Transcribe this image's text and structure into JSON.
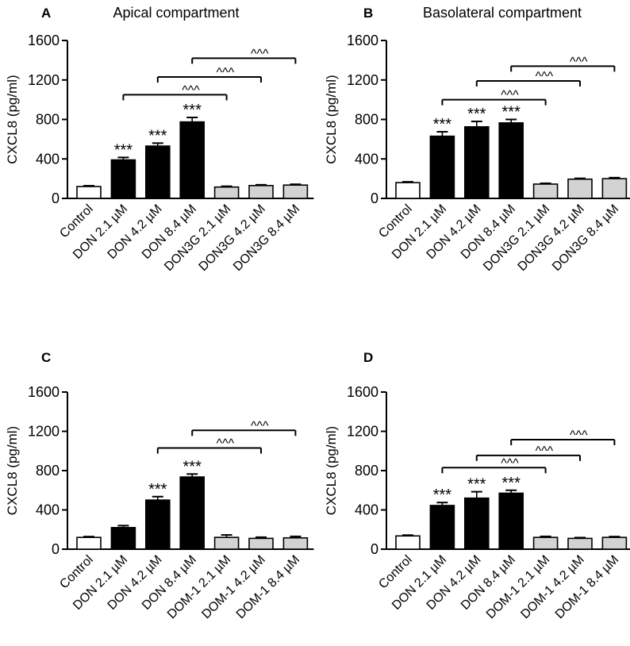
{
  "chart_data": [
    {
      "panel_label": "A",
      "title": "Apical compartment",
      "type": "bar",
      "ylabel": "CXCL8 (pg/ml)",
      "ylim": [
        0,
        1600
      ],
      "yticks": [
        "0",
        "400",
        "800",
        "1200",
        "1600"
      ],
      "categories": [
        "Control",
        "DON 2.1 µM",
        "DON 4.2 µM",
        "DON 8.4 µM",
        "DON3G 2.1 µM",
        "DON3G 4.2 µM",
        "DON3G 8.4 µM"
      ],
      "values": [
        120,
        390,
        530,
        775,
        115,
        130,
        135
      ],
      "errors": [
        8,
        25,
        30,
        45,
        8,
        8,
        8
      ],
      "bar_fills": [
        "white",
        "black",
        "black",
        "black",
        "gray",
        "gray",
        "gray"
      ],
      "significance": [
        "",
        "***",
        "***",
        "***",
        "",
        "",
        ""
      ],
      "comparisons": [
        {
          "from": 1,
          "to": 4,
          "level": 1050,
          "label": "^^^"
        },
        {
          "from": 2,
          "to": 5,
          "level": 1230,
          "label": "^^^"
        },
        {
          "from": 3,
          "to": 6,
          "level": 1420,
          "label": "^^^"
        }
      ]
    },
    {
      "panel_label": "B",
      "title": "Basolateral compartment",
      "type": "bar",
      "ylabel": "CXCL8 (pg/ml)",
      "ylim": [
        0,
        1600
      ],
      "yticks": [
        "0",
        "400",
        "800",
        "1200",
        "1600"
      ],
      "categories": [
        "Control",
        "DON 2.1 µM",
        "DON 4.2 µM",
        "DON 8.4 µM",
        "DON3G 2.1 µM",
        "DON3G 4.2 µM",
        "DON3G 8.4 µM"
      ],
      "values": [
        160,
        630,
        725,
        765,
        145,
        195,
        200
      ],
      "errors": [
        8,
        45,
        55,
        35,
        8,
        8,
        10
      ],
      "bar_fills": [
        "white",
        "black",
        "black",
        "black",
        "gray",
        "gray",
        "gray"
      ],
      "significance": [
        "",
        "***",
        "***",
        "***",
        "",
        "",
        ""
      ],
      "comparisons": [
        {
          "from": 1,
          "to": 4,
          "level": 1000,
          "label": "^^^"
        },
        {
          "from": 2,
          "to": 5,
          "level": 1190,
          "label": "^^^"
        },
        {
          "from": 3,
          "to": 6,
          "level": 1340,
          "label": "^^^"
        }
      ]
    },
    {
      "panel_label": "C",
      "title": "",
      "type": "bar",
      "ylabel": "CXCL8 (pg/ml)",
      "ylim": [
        0,
        1600
      ],
      "yticks": [
        "0",
        "400",
        "800",
        "1200",
        "1600"
      ],
      "categories": [
        "Control",
        "DON 2.1 µM",
        "DON 4.2 µM",
        "DON 8.4 µM",
        "DOM-1 2.1 µM",
        "DOM-1 4.2 µM",
        "DOM-1 8.4 µM"
      ],
      "values": [
        120,
        220,
        500,
        735,
        120,
        110,
        115
      ],
      "errors": [
        8,
        20,
        35,
        30,
        25,
        12,
        15
      ],
      "bar_fills": [
        "white",
        "black",
        "black",
        "black",
        "gray",
        "gray",
        "gray"
      ],
      "significance": [
        "",
        "",
        "***",
        "***",
        "",
        "",
        ""
      ],
      "comparisons": [
        {
          "from": 2,
          "to": 5,
          "level": 1030,
          "label": "^^^"
        },
        {
          "from": 3,
          "to": 6,
          "level": 1210,
          "label": "^^^"
        }
      ]
    },
    {
      "panel_label": "D",
      "title": "",
      "type": "bar",
      "ylabel": "CXCL8 (pg/ml)",
      "ylim": [
        0,
        1600
      ],
      "yticks": [
        "0",
        "400",
        "800",
        "1200",
        "1600"
      ],
      "categories": [
        "Control",
        "DON 2.1 µM",
        "DON 4.2 µM",
        "DON 8.4 µM",
        "DOM-1 2.1 µM",
        "DOM-1 4.2 µM",
        "DOM-1 8.4 µM"
      ],
      "values": [
        135,
        445,
        520,
        570,
        120,
        110,
        120
      ],
      "errors": [
        8,
        30,
        65,
        30,
        10,
        8,
        8
      ],
      "bar_fills": [
        "white",
        "black",
        "black",
        "black",
        "gray",
        "gray",
        "gray"
      ],
      "significance": [
        "",
        "***",
        "***",
        "***",
        "",
        "",
        ""
      ],
      "comparisons": [
        {
          "from": 1,
          "to": 4,
          "level": 830,
          "label": "^^^"
        },
        {
          "from": 2,
          "to": 5,
          "level": 955,
          "label": "^^^"
        },
        {
          "from": 3,
          "to": 6,
          "level": 1115,
          "label": "^^^"
        }
      ]
    }
  ],
  "colors": {
    "white": "#ffffff",
    "black": "#000000",
    "gray": "#d3d3d3",
    "axis": "#000000"
  }
}
